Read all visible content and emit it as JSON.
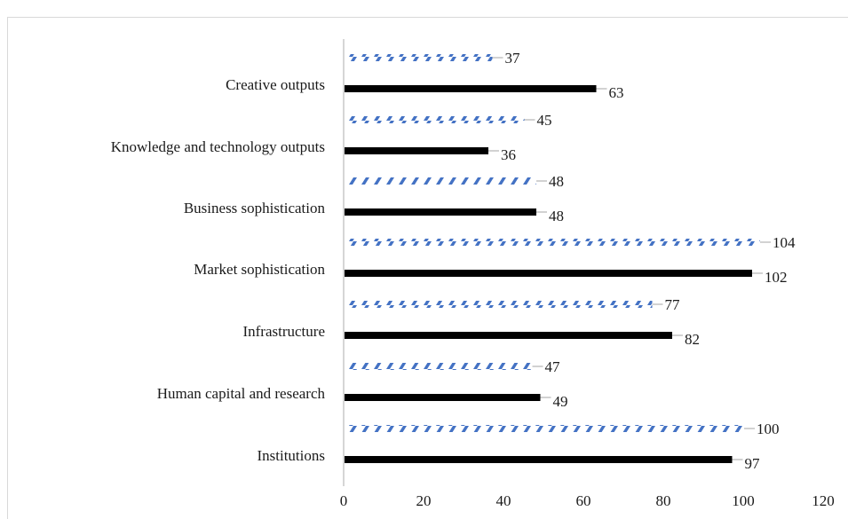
{
  "chart_data": {
    "type": "bar",
    "orientation": "horizontal",
    "categories": [
      "Institutions",
      "Human capital and research",
      "Infrastructure",
      "Market sophistication",
      "Business sophistication",
      "Knowledge and technology outputs",
      "Creative outputs"
    ],
    "series": [
      {
        "values": [
          97,
          49,
          82,
          102,
          48,
          36,
          63
        ],
        "color": "#000000",
        "style": "solid"
      },
      {
        "values": [
          100,
          47,
          77,
          104,
          48,
          45,
          37
        ],
        "color": "#4472c4",
        "style": "hatched"
      }
    ],
    "xlim": [
      0,
      120
    ],
    "x_ticks": [
      0,
      20,
      40,
      60,
      80,
      100,
      120
    ],
    "x_tick_labels": [
      "0",
      "20",
      "40",
      "60",
      "80",
      "100",
      "120"
    ],
    "grid": false,
    "legend": "none",
    "title": "",
    "xlabel": "",
    "ylabel": ""
  }
}
